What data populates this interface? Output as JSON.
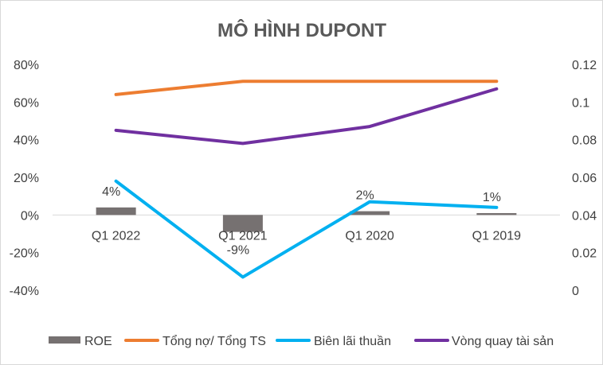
{
  "chart_data": {
    "type": "bar",
    "title": "MÔ HÌNH DUPONT",
    "categories": [
      "Q1 2022",
      "Q1 2021",
      "Q1 2020",
      "Q1 2019"
    ],
    "y_left": {
      "ylim": [
        -0.4,
        0.8
      ],
      "ticks": [
        -0.4,
        -0.2,
        0,
        0.2,
        0.4,
        0.6,
        0.8
      ],
      "tick_labels": [
        "-40%",
        "-20%",
        "0%",
        "20%",
        "40%",
        "60%",
        "80%"
      ]
    },
    "y_right": {
      "ylim": [
        0,
        0.12
      ],
      "ticks": [
        0,
        0.02,
        0.04,
        0.06,
        0.08,
        0.1,
        0.12
      ],
      "tick_labels": [
        "0",
        "0.02",
        "0.04",
        "0.06",
        "0.08",
        "0.1",
        "0.12"
      ]
    },
    "series": [
      {
        "name": "ROE",
        "kind": "bar",
        "axis": "left",
        "color": "#767171",
        "values": [
          0.04,
          -0.09,
          0.02,
          0.01
        ],
        "labels": [
          "4%",
          "-9%",
          "2%",
          "1%"
        ]
      },
      {
        "name": "Tổng nợ/ Tổng TS",
        "kind": "line",
        "axis": "left",
        "color": "#ed7d31",
        "values": [
          0.64,
          0.71,
          0.71,
          0.71
        ]
      },
      {
        "name": "Biên lãi thuần",
        "kind": "line",
        "axis": "right",
        "color": "#00b0f0",
        "values": [
          0.058,
          0.007,
          0.047,
          0.044
        ]
      },
      {
        "name": "Vòng quay tài sản",
        "kind": "line",
        "axis": "left",
        "color": "#7030a0",
        "values": [
          0.45,
          0.38,
          0.47,
          0.67
        ]
      }
    ],
    "grid": false,
    "legend": "bottom"
  }
}
